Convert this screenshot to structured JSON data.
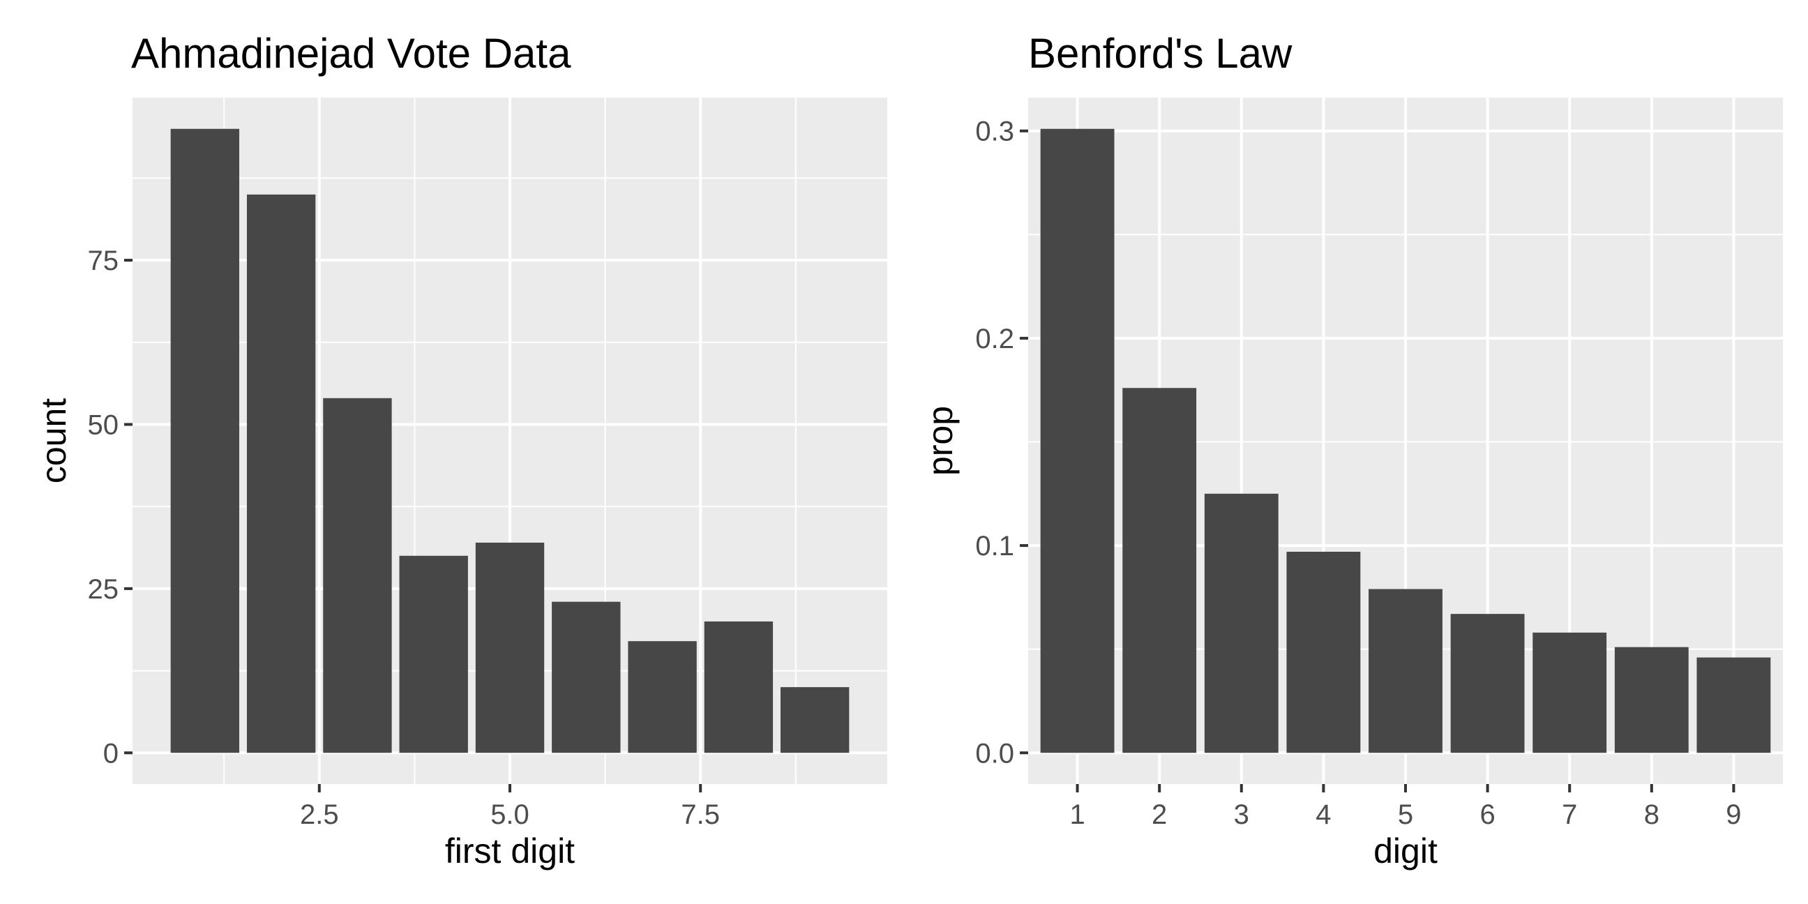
{
  "chart_data": [
    {
      "type": "bar",
      "title": "Ahmadinejad Vote Data",
      "xlabel": "first digit",
      "ylabel": "count",
      "x": [
        1,
        2,
        3,
        4,
        5,
        6,
        7,
        8,
        9
      ],
      "values": [
        95,
        85,
        54,
        30,
        32,
        23,
        17,
        20,
        10
      ],
      "xlim": [
        0.5,
        9.5
      ],
      "ylim": [
        0,
        95
      ],
      "x_ticks": [
        2.5,
        5.0,
        7.5
      ],
      "x_tick_labels": [
        "2.5",
        "5.0",
        "7.5"
      ],
      "y_ticks": [
        0,
        25,
        50,
        75
      ],
      "y_tick_labels": [
        "0",
        "25",
        "50",
        "75"
      ],
      "grid": true,
      "bar_color": "#474747",
      "panel_color": "#ebebeb"
    },
    {
      "type": "bar",
      "title": "Benford's Law",
      "xlabel": "digit",
      "ylabel": "prop",
      "categories": [
        "1",
        "2",
        "3",
        "4",
        "5",
        "6",
        "7",
        "8",
        "9"
      ],
      "values": [
        0.301,
        0.176,
        0.125,
        0.097,
        0.079,
        0.067,
        0.058,
        0.051,
        0.046
      ],
      "ylim": [
        0,
        0.301
      ],
      "y_ticks": [
        0.0,
        0.1,
        0.2,
        0.3
      ],
      "y_tick_labels": [
        "0.0",
        "0.1",
        "0.2",
        "0.3"
      ],
      "grid": true,
      "bar_color": "#474747",
      "panel_color": "#ebebeb"
    }
  ]
}
